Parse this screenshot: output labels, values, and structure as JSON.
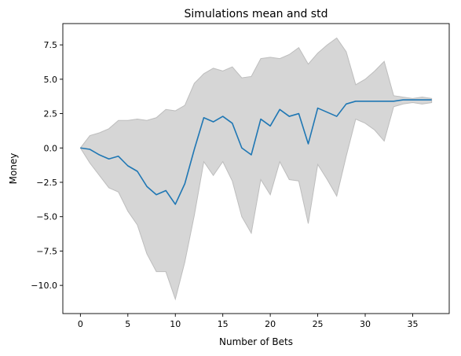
{
  "chart_data": {
    "type": "line",
    "title": "Simulations mean and std",
    "xlabel": "Number of Bets",
    "ylabel": "Money",
    "xlim": [
      -1.85,
      38.85
    ],
    "ylim": [
      -12.05,
      9.05
    ],
    "xticks": [
      0,
      5,
      10,
      15,
      20,
      25,
      30,
      35
    ],
    "yticks": [
      -10.0,
      -7.5,
      -5.0,
      -2.5,
      0.0,
      2.5,
      5.0,
      7.5
    ],
    "xtick_labels": [
      "0",
      "5",
      "10",
      "15",
      "20",
      "25",
      "30",
      "35"
    ],
    "ytick_labels": [
      "−10.0",
      "−7.5",
      "−5.0",
      "−2.5",
      "0.0",
      "2.5",
      "5.0",
      "7.5"
    ],
    "grid": false,
    "colors": {
      "mean_line": "#1f77b4",
      "band_fill": "#d6d6d6",
      "band_edge": "#bdbdbd"
    },
    "x": [
      0,
      1,
      2,
      3,
      4,
      5,
      6,
      7,
      8,
      9,
      10,
      11,
      12,
      13,
      14,
      15,
      16,
      17,
      18,
      19,
      20,
      21,
      22,
      23,
      24,
      25,
      26,
      27,
      28,
      29,
      30,
      31,
      32,
      33,
      34,
      35,
      36,
      37
    ],
    "series": [
      {
        "values": [
          0.0,
          -0.1,
          -0.5,
          -0.8,
          -0.6,
          -1.3,
          -1.7,
          -2.8,
          -3.4,
          -3.1,
          -4.1,
          -2.6,
          -0.1,
          2.2,
          1.9,
          2.3,
          1.8,
          0.0,
          -0.5,
          2.1,
          1.6,
          2.8,
          2.3,
          2.5,
          0.3,
          2.9,
          2.6,
          2.3,
          3.2,
          3.4,
          3.4,
          3.4,
          3.4,
          3.4,
          3.5,
          3.5,
          3.5,
          3.5
        ],
        "upper": [
          0.0,
          0.9,
          1.1,
          1.4,
          2.0,
          2.0,
          2.1,
          2.0,
          2.2,
          2.8,
          2.7,
          3.1,
          4.7,
          5.4,
          5.8,
          5.6,
          5.9,
          5.1,
          5.2,
          6.5,
          6.6,
          6.5,
          6.8,
          7.3,
          6.1,
          6.9,
          7.5,
          8.0,
          7.0,
          4.6,
          5.0,
          5.6,
          6.3,
          3.8,
          3.7,
          3.6,
          3.7,
          3.6
        ],
        "lower": [
          0.0,
          -1.1,
          -2.0,
          -2.9,
          -3.2,
          -4.6,
          -5.6,
          -7.7,
          -9.0,
          -9.0,
          -11.0,
          -8.3,
          -4.9,
          -1.0,
          -2.0,
          -1.0,
          -2.4,
          -5.0,
          -6.2,
          -2.3,
          -3.4,
          -1.0,
          -2.3,
          -2.4,
          -5.5,
          -1.2,
          -2.3,
          -3.5,
          -0.6,
          2.1,
          1.8,
          1.3,
          0.5,
          3.0,
          3.2,
          3.3,
          3.2,
          3.3
        ]
      }
    ]
  }
}
